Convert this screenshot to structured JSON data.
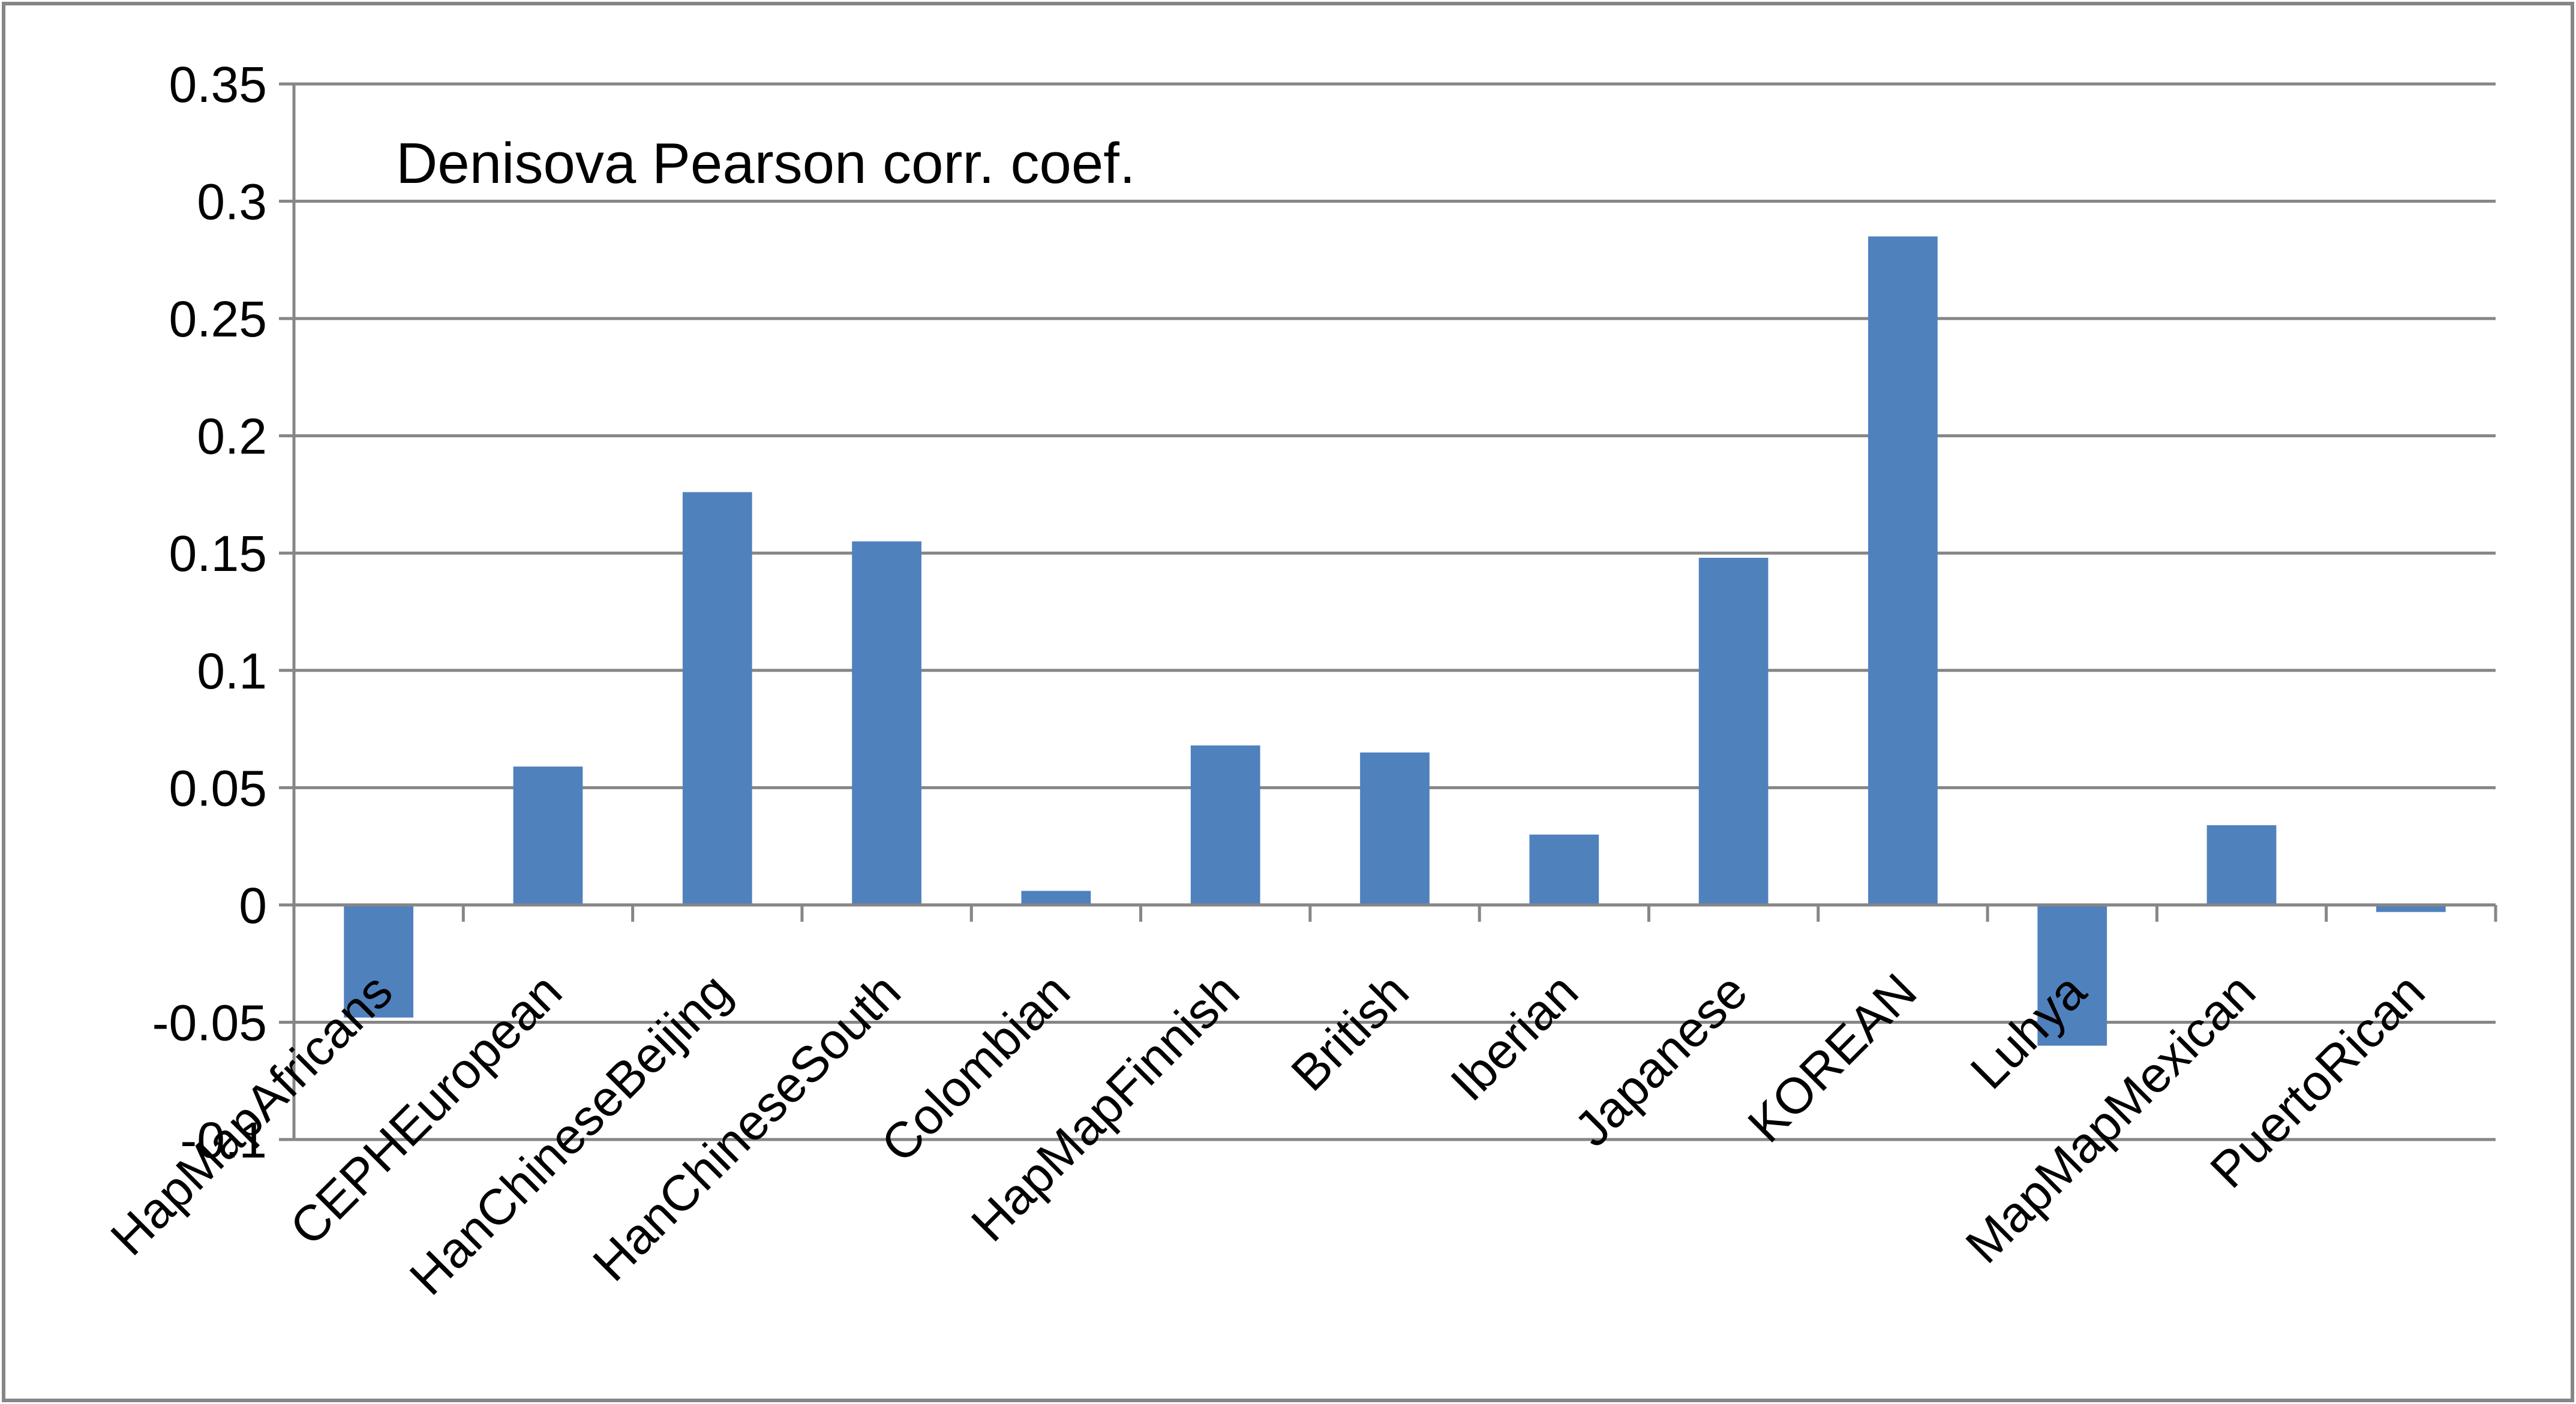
{
  "chart_data": {
    "type": "bar",
    "title": "Denisova Pearson corr. coef.",
    "xlabel": "",
    "ylabel": "",
    "categories": [
      "HapMapAfricans",
      "CEPHEuropean",
      "HanChineseBeijing",
      "HanChineseSouth",
      "Colombian",
      "HapMapFinnish",
      "British",
      "Iberian",
      "Japanese",
      "KOREAN",
      "Luhya",
      "MapMapMexican",
      "PuertoRican"
    ],
    "values": [
      -0.048,
      0.059,
      0.176,
      0.155,
      0.006,
      0.068,
      0.065,
      0.03,
      0.148,
      0.285,
      -0.06,
      0.034,
      -0.003
    ],
    "ylim": [
      -0.1,
      0.35
    ],
    "yticks": [
      0.35,
      0.3,
      0.25,
      0.2,
      0.15,
      0.1,
      0.05,
      0,
      -0.05,
      -0.1
    ],
    "ytick_labels": [
      "0.35",
      "0.3",
      "0.25",
      "0.2",
      "0.15",
      "0.1",
      "0.05",
      "0",
      "-0.05",
      "-0.1"
    ],
    "grid": true,
    "legend": false,
    "colors": {
      "bar": "#4F81BD",
      "grid": "#868686",
      "frame": "#868686"
    }
  }
}
